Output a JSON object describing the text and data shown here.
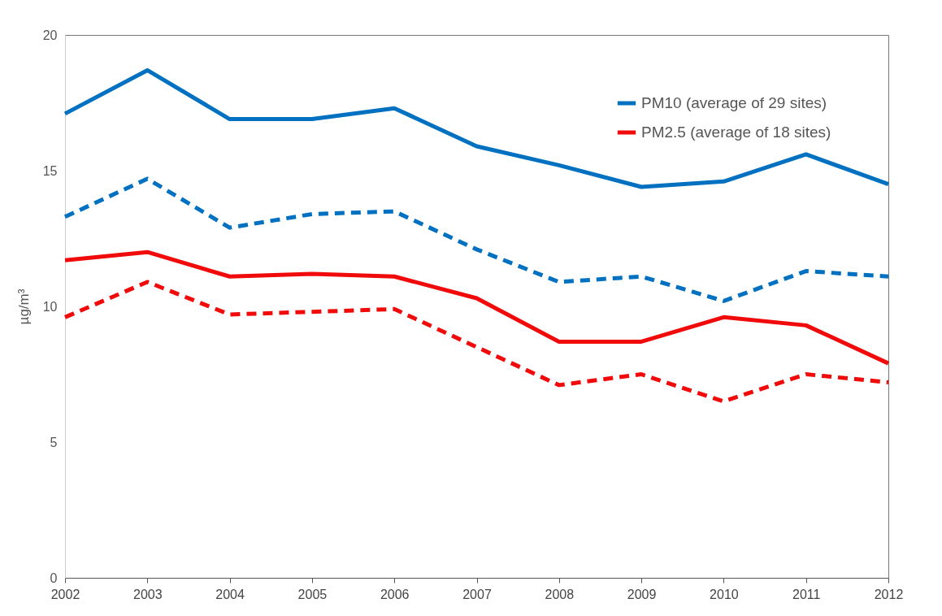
{
  "chart_data": {
    "type": "line",
    "ylabel": "µg/m³",
    "x": [
      2002,
      2003,
      2004,
      2005,
      2006,
      2007,
      2008,
      2009,
      2010,
      2011,
      2012
    ],
    "series": [
      {
        "name": "PM10 (average of 29 sites)",
        "color": "#0070c0",
        "line_style": "solid",
        "values": [
          17.1,
          18.7,
          16.9,
          16.9,
          17.3,
          15.9,
          15.2,
          14.4,
          14.6,
          15.6,
          14.5
        ]
      },
      {
        "name": "PM2.5 (average of 18 sites)",
        "color": "#f00a0a",
        "line_style": "solid",
        "values": [
          11.7,
          12.0,
          11.1,
          11.2,
          11.1,
          10.3,
          8.7,
          8.7,
          9.6,
          9.3,
          7.9
        ]
      },
      {
        "color": "#0070c0",
        "line_style": "dashed",
        "values": [
          13.3,
          14.7,
          12.9,
          13.4,
          13.5,
          12.1,
          10.9,
          11.1,
          10.2,
          11.3,
          11.1
        ]
      },
      {
        "color": "#f00a0a",
        "line_style": "dashed",
        "values": [
          9.6,
          10.9,
          9.7,
          9.8,
          9.9,
          8.5,
          7.1,
          7.5,
          6.5,
          7.5,
          7.2
        ]
      }
    ],
    "xlim": [
      2002,
      2012
    ],
    "xticks": [
      2002,
      2003,
      2004,
      2005,
      2006,
      2007,
      2008,
      2009,
      2010,
      2011,
      2012
    ],
    "ylim": [
      0,
      20
    ],
    "yticks": [
      0,
      5,
      10,
      15,
      20
    ],
    "grid": false,
    "legend": "top right",
    "marker": "none"
  }
}
